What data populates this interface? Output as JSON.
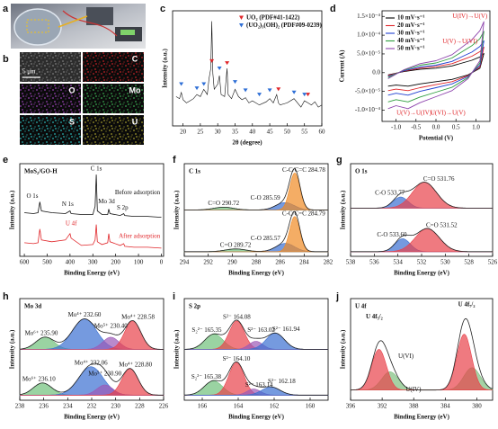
{
  "figure": {
    "a": {
      "label": "a"
    },
    "b": {
      "label": "b",
      "scale": "5 μm",
      "tiles": [
        "C",
        "O",
        "Mo",
        "S",
        "U"
      ]
    }
  },
  "chart_data": [
    {
      "type": "line",
      "label": "c",
      "xlabel": "2θ (degree)",
      "ylabel": "Intensity (a.u.)",
      "xlim": [
        17,
        60
      ],
      "ylim": [
        0,
        110
      ],
      "xticks": [
        20,
        25,
        30,
        35,
        40,
        45,
        50,
        55,
        60
      ],
      "x": [
        18,
        19,
        19.5,
        20,
        21,
        22,
        23,
        24,
        25,
        26,
        27,
        27.5,
        28,
        28.3,
        28.6,
        29,
        30,
        30.5,
        31,
        32,
        32.7,
        33,
        34,
        35,
        36,
        37,
        38,
        39,
        40,
        42,
        44,
        45,
        46,
        47,
        47.5,
        48,
        50,
        52,
        54,
        55,
        56,
        57,
        58,
        59,
        60
      ],
      "values": [
        28,
        26,
        32,
        25,
        22,
        24,
        26,
        30,
        28,
        35,
        30,
        45,
        55,
        100,
        50,
        35,
        40,
        48,
        30,
        28,
        55,
        30,
        26,
        35,
        28,
        25,
        27,
        22,
        24,
        20,
        23,
        26,
        22,
        30,
        22,
        20,
        22,
        26,
        18,
        24,
        22,
        20,
        23,
        18,
        20
      ],
      "color": "#111111",
      "legend": "upper right",
      "markers": [
        {
          "name": "UO₂ (PDF#41-1422)",
          "color": "#e0262a",
          "x": [
            28.3,
            32.7,
            47.5,
            56
          ],
          "values": [
            62,
            60,
            35,
            30
          ]
        },
        {
          "name": "(UO₂)₃(OH)₂ (PDF#09-0239)",
          "color": "#2f6fd6",
          "x": [
            19.5,
            24,
            26,
            30.5,
            35,
            38,
            42,
            45,
            52,
            55
          ],
          "values": [
            40,
            36,
            40,
            55,
            42,
            34,
            30,
            34,
            32,
            30
          ]
        }
      ]
    },
    {
      "type": "cv",
      "label": "d",
      "xlabel": "Potential (V)",
      "ylabel": "Current (A)",
      "xlim": [
        -1.35,
        1.35
      ],
      "ylim": [
        -0.00013,
        0.000165
      ],
      "xticks": [
        {
          "value": -1,
          "label": "-1.0"
        },
        -0.5,
        {
          "value": 0,
          "label": "0.0"
        },
        0.5,
        {
          "value": 1,
          "label": "1.0"
        }
      ],
      "yticks": [
        {
          "value": -0.0001,
          "label": "-1.0×10⁻⁴"
        },
        {
          "value": -5e-05,
          "label": "-5.0×10⁻⁵"
        },
        {
          "value": 0,
          "label": "0.0"
        },
        {
          "value": 5e-05,
          "label": "5.0×10⁻⁵"
        },
        {
          "value": 0.0001,
          "label": "1.0×10⁻⁴"
        },
        {
          "value": 0.00015,
          "label": "1.5×10⁻⁴"
        }
      ],
      "legend": "upper left",
      "series": [
        {
          "name": "10 mV·s⁻¹",
          "color": "#000000",
          "x": [
            -1.2,
            -0.8,
            -0.4,
            0,
            0.4,
            0.7,
            0.9,
            1.1,
            1.2,
            1.1,
            0.8,
            0.4,
            0,
            -0.4,
            -0.7,
            -1.0,
            -1.2
          ],
          "values": [
            -6e-06,
            3e-06,
            9e-06,
            1.2e-05,
            1.8e-05,
            2.7e-05,
            3.3e-05,
            4.2e-05,
            5.1e-05,
            1.2e-05,
            -6e-06,
            -1.8e-05,
            -2.4e-05,
            -3e-05,
            -3.6e-05,
            -3.3e-05,
            -3.6e-05
          ]
        },
        {
          "name": "20 mV·s⁻¹",
          "color": "#e0262a",
          "x": [
            -1.2,
            -0.8,
            -0.4,
            0,
            0.4,
            0.7,
            0.9,
            1.1,
            1.2,
            1.1,
            0.8,
            0.4,
            0,
            -0.4,
            -0.7,
            -1.0,
            -1.2
          ],
          "values": [
            -8e-06,
            4e-06,
            1.2e-05,
            1.6e-05,
            2.4e-05,
            3.6e-05,
            4.4e-05,
            5.6e-05,
            6.8e-05,
            1.6e-05,
            -8e-06,
            -2.4e-05,
            -3.2e-05,
            -4e-05,
            -4.8e-05,
            -4.4e-05,
            -4.8e-05
          ]
        },
        {
          "name": "30 mV·s⁻¹",
          "color": "#1f3fd1",
          "x": [
            -1.2,
            -0.8,
            -0.4,
            0,
            0.4,
            0.7,
            0.9,
            1.1,
            1.2,
            1.1,
            0.8,
            0.4,
            0,
            -0.4,
            -0.7,
            -1.0,
            -1.2
          ],
          "values": [
            -1e-05,
            5e-06,
            1.5e-05,
            2e-05,
            3e-05,
            4.5e-05,
            5.5e-05,
            7e-05,
            8.5e-05,
            2e-05,
            -1e-05,
            -3e-05,
            -4e-05,
            -5e-05,
            -6e-05,
            -5.5e-05,
            -6e-05
          ]
        },
        {
          "name": "40 mV·s⁻¹",
          "color": "#2e9e3e",
          "x": [
            -1.2,
            -0.8,
            -0.4,
            0,
            0.4,
            0.7,
            0.9,
            1.1,
            1.2,
            1.1,
            0.8,
            0.4,
            0,
            -0.4,
            -0.7,
            -1.0,
            -1.2
          ],
          "values": [
            -1.3e-05,
            7e-06,
            2e-05,
            2.6e-05,
            3.9e-05,
            5.9e-05,
            7.2e-05,
            9.1e-05,
            0.00011,
            2.6e-05,
            -1.3e-05,
            -3.9e-05,
            -5.2e-05,
            -6.5e-05,
            -7.8e-05,
            -7.2e-05,
            -7.8e-05
          ]
        },
        {
          "name": "50 mV·s⁻¹",
          "color": "#8e44ad",
          "x": [
            -1.2,
            -0.8,
            -0.4,
            0,
            0.4,
            0.7,
            0.9,
            1.1,
            1.2,
            1.1,
            0.8,
            0.4,
            0,
            -0.4,
            -0.7,
            -1.0,
            -1.2
          ],
          "values": [
            -1.6e-05,
            8e-06,
            2.4e-05,
            3.2e-05,
            4.8e-05,
            7.2e-05,
            8.8e-05,
            0.000112,
            0.000136,
            3.2e-05,
            -1.6e-05,
            -4.8e-05,
            -6.4e-05,
            -8e-05,
            -9.6e-05,
            -8.8e-05,
            -9.6e-05
          ]
        }
      ],
      "annotations": [
        {
          "text": "U(IV)→U(V)",
          "color": "#e0262a"
        },
        {
          "text": "U(V)→U(VI)",
          "color": "#e0262a"
        },
        {
          "text": "U(V)→U(IV)",
          "color": "#e0262a"
        },
        {
          "text": "U(VI)→U(V)",
          "color": "#e0262a"
        }
      ]
    },
    {
      "type": "line",
      "label": "e",
      "title": "MoS₂/GO-H",
      "xlabel": "Binding Energy (eV)",
      "ylabel": "Intensity (a.u.)",
      "xlim": [
        620,
        -10
      ],
      "ylim": [
        10,
        112
      ],
      "xticks": [
        600,
        500,
        400,
        300,
        200,
        100,
        0
      ],
      "legend": "inline",
      "x": [
        600,
        560,
        540,
        532,
        525,
        480,
        420,
        400,
        395,
        350,
        300,
        290,
        285,
        280,
        260,
        235,
        230,
        225,
        180,
        165,
        160,
        120,
        60,
        0
      ],
      "series": [
        {
          "name": "Before adsorption",
          "color": "#111111",
          "values": [
            58,
            57,
            58,
            70,
            60,
            58,
            57,
            60,
            57,
            56,
            56,
            65,
            100,
            60,
            56,
            56,
            62,
            57,
            55,
            57,
            55,
            54,
            54,
            53
          ]
        },
        {
          "name": "After adsorption",
          "color": "#e0262a",
          "values": [
            25,
            24,
            25,
            40,
            28,
            26,
            28,
            35,
            30,
            22,
            23,
            28,
            45,
            26,
            23,
            25,
            35,
            26,
            22,
            24,
            21,
            20,
            20,
            19
          ]
        }
      ],
      "annotations": [
        {
          "text": "O 1s"
        },
        {
          "text": "N 1s"
        },
        {
          "text": "C 1s"
        },
        {
          "text": "Mo 3d"
        },
        {
          "text": "S 2p"
        },
        {
          "text": "U 4f",
          "color": "#e0262a"
        }
      ]
    },
    {
      "type": "xps",
      "label": "f",
      "title": "C 1s",
      "xlabel": "Binding Energy (eV)",
      "ylabel": "Intensity (a.u.)",
      "xlim": [
        294,
        282
      ],
      "ylim": [
        0,
        100
      ],
      "xticks": [
        294,
        292,
        290,
        288,
        286,
        284,
        282
      ],
      "spectra": [
        {
          "offset": 50,
          "components": [
            {
              "name": "C=O 290.72",
              "color": "#6fc07a",
              "center": 290.72,
              "height": 3,
              "fwhm": 2
            },
            {
              "name": "C-O 285.59",
              "color": "#3b6fd1",
              "center": 285.59,
              "height": 8,
              "fwhm": 1.8
            },
            {
              "name": "C-C/C=C 284.78",
              "color": "#f08a24",
              "center": 284.78,
              "height": 40,
              "fwhm": 1.0
            }
          ]
        },
        {
          "offset": 5,
          "components": [
            {
              "name": "C=O 289.72",
              "color": "#6fc07a",
              "center": 289.72,
              "height": 3,
              "fwhm": 2
            },
            {
              "name": "C-O 285.57",
              "color": "#3b6fd1",
              "center": 285.57,
              "height": 9,
              "fwhm": 1.8
            },
            {
              "name": "C-C/C=C 284.79",
              "color": "#f08a24",
              "center": 284.79,
              "height": 38,
              "fwhm": 1.0
            }
          ]
        }
      ]
    },
    {
      "type": "xps",
      "label": "g",
      "title": "O 1s",
      "xlabel": "Binding Energy (eV)",
      "ylabel": "Intensity (a.u.)",
      "xlim": [
        538,
        526
      ],
      "ylim": [
        0,
        100
      ],
      "xticks": [
        538,
        536,
        534,
        532,
        530,
        528,
        526
      ],
      "spectra": [
        {
          "offset": 52,
          "components": [
            {
              "name": "C-O 533.77",
              "color": "#3b6fd1",
              "center": 533.77,
              "height": 12,
              "fwhm": 1.5
            },
            {
              "name": "C=O 531.76",
              "color": "#e8414a",
              "center": 531.76,
              "height": 28,
              "fwhm": 2.4
            }
          ]
        },
        {
          "offset": 5,
          "components": [
            {
              "name": "C-O 533.60",
              "color": "#3b6fd1",
              "center": 533.6,
              "height": 14,
              "fwhm": 1.5
            },
            {
              "name": "C=O 531.52",
              "color": "#e8414a",
              "center": 531.52,
              "height": 25,
              "fwhm": 2.4
            }
          ]
        }
      ]
    },
    {
      "type": "xps",
      "label": "h",
      "title": "Mo 3d",
      "xlabel": "Binding Energy (eV)",
      "ylabel": "Intensity (a.u.)",
      "xlim": [
        238,
        226
      ],
      "ylim": [
        0,
        100
      ],
      "xticks": [
        238,
        236,
        234,
        232,
        230,
        228,
        226
      ],
      "spectra": [
        {
          "offset": 50,
          "components": [
            {
              "name": "Mo⁶⁺ 235.90",
              "color": "#6fc07a",
              "center": 235.9,
              "height": 12,
              "fwhm": 1.8
            },
            {
              "name": "Mo⁴⁺ 232.60",
              "color": "#3b6fd1",
              "center": 232.6,
              "height": 30,
              "fwhm": 2.4
            },
            {
              "name": "Mo⁵⁺ 230.40",
              "color": "#9b59b6",
              "center": 230.4,
              "height": 12,
              "fwhm": 1.6
            },
            {
              "name": "Mo⁴⁺ 228.58",
              "color": "#e8414a",
              "center": 228.58,
              "height": 28,
              "fwhm": 1.6
            }
          ]
        },
        {
          "offset": 5,
          "components": [
            {
              "name": "Mo⁶⁺ 236.10",
              "color": "#6fc07a",
              "center": 236.1,
              "height": 12,
              "fwhm": 1.8
            },
            {
              "name": "Mo⁴⁺ 232.06",
              "color": "#3b6fd1",
              "center": 232.06,
              "height": 28,
              "fwhm": 2.4
            },
            {
              "name": "Mo⁵⁺ 230.90",
              "color": "#9b59b6",
              "center": 230.9,
              "height": 10,
              "fwhm": 1.6
            },
            {
              "name": "Mo⁴⁺ 228.80",
              "color": "#e8414a",
              "center": 228.8,
              "height": 26,
              "fwhm": 1.6
            }
          ]
        }
      ]
    },
    {
      "type": "xps",
      "label": "i",
      "title": "S 2p",
      "xlabel": "Binding Energy (eV)",
      "ylabel": "Intensity (a.u.)",
      "xlim": [
        167,
        159
      ],
      "ylim": [
        0,
        100
      ],
      "xticks": [
        166,
        164,
        162,
        160
      ],
      "spectra": [
        {
          "offset": 50,
          "components": [
            {
              "name": "S₂²⁻ 165.35",
              "color": "#6fc07a",
              "center": 165.35,
              "height": 15,
              "fwhm": 1.2
            },
            {
              "name": "S²⁻ 164.08",
              "color": "#e8414a",
              "center": 164.08,
              "height": 28,
              "fwhm": 1.0
            },
            {
              "name": "S²⁻ 163.02",
              "color": "#9b59b6",
              "center": 163.02,
              "height": 8,
              "fwhm": 0.9
            },
            {
              "name": "S²⁻ 161.94",
              "color": "#3b6fd1",
              "center": 161.94,
              "height": 16,
              "fwhm": 1.2
            }
          ]
        },
        {
          "offset": 5,
          "components": [
            {
              "name": "S₂²⁻ 165.38",
              "color": "#6fc07a",
              "center": 165.38,
              "height": 14,
              "fwhm": 1.2
            },
            {
              "name": "S²⁻ 164.10",
              "color": "#e8414a",
              "center": 164.1,
              "height": 32,
              "fwhm": 1.0
            },
            {
              "name": "S²⁻ 163.14",
              "color": "#9b59b6",
              "center": 163.14,
              "height": 6,
              "fwhm": 0.9
            },
            {
              "name": "S²⁻ 162.18",
              "color": "#3b6fd1",
              "center": 162.18,
              "height": 8,
              "fwhm": 1.2
            }
          ]
        }
      ]
    },
    {
      "type": "xps",
      "label": "j",
      "title": "U 4f",
      "xlabel": "Binding Energy (eV)",
      "ylabel": "Intensity (a.u.)",
      "xlim": [
        396,
        378
      ],
      "ylim": [
        0,
        100
      ],
      "xticks": [
        396,
        392,
        388,
        384,
        380
      ],
      "spectra": [
        {
          "offset": 10,
          "components": [
            {
              "name": "U(IV)",
              "color": "#7fbf7f",
              "center": 391.0,
              "height": 18,
              "fwhm": 2.5
            },
            {
              "name": "U(VI)",
              "color": "#e8414a",
              "center": 392.4,
              "height": 40,
              "fwhm": 2.2
            },
            {
              "color": "#7fbf7f",
              "center": 380.6,
              "height": 22,
              "fwhm": 2.5
            },
            {
              "color": "#e8414a",
              "center": 381.6,
              "height": 55,
              "fwhm": 2.2
            }
          ]
        }
      ],
      "annotations": [
        {
          "text": "U 4f₅/₂"
        },
        {
          "text": "U 4f₇/₂"
        }
      ]
    }
  ]
}
